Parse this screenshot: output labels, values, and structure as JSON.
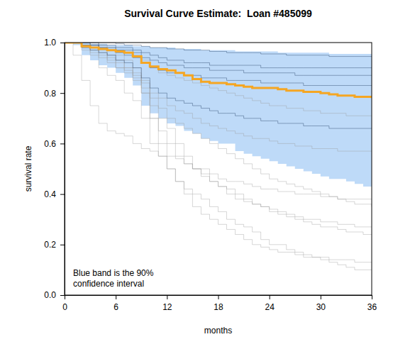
{
  "chart_data": {
    "type": "line",
    "title": "Survival Curve Estimate:  Loan #485099",
    "x_label": "months",
    "y_label": "survival rate",
    "annotation": [
      "Blue band is the 90%",
      "confidence interval"
    ],
    "line_style": "step",
    "x": [
      0,
      1,
      2,
      3,
      4,
      5,
      6,
      7,
      8,
      9,
      10,
      11,
      12,
      13,
      14,
      15,
      16,
      17,
      18,
      19,
      20,
      21,
      22,
      23,
      24,
      25,
      26,
      27,
      28,
      29,
      30,
      31,
      32,
      33,
      34,
      35,
      36
    ],
    "xlim": [
      0,
      36
    ],
    "xticks": [
      0,
      6,
      12,
      18,
      24,
      30,
      36
    ],
    "ylim": [
      0,
      1
    ],
    "yticks": [
      {
        "value": 0,
        "label": "0.0"
      },
      {
        "value": 0.2,
        "label": "0.2"
      },
      {
        "value": 0.4,
        "label": "0.4"
      },
      {
        "value": 0.6,
        "label": "0.6"
      },
      {
        "value": 0.8,
        "label": "0.8"
      },
      {
        "value": 1,
        "label": "1.0"
      }
    ],
    "grid": false,
    "series": [
      {
        "type": "area",
        "color": "#b3d4f7",
        "upper": [
          1,
          1,
          1,
          0.995,
          0.995,
          0.99,
          0.99,
          0.99,
          0.985,
          0.985,
          0.98,
          0.98,
          0.98,
          0.975,
          0.975,
          0.975,
          0.97,
          0.97,
          0.97,
          0.97,
          0.965,
          0.965,
          0.965,
          0.965,
          0.965,
          0.96,
          0.96,
          0.96,
          0.96,
          0.96,
          0.96,
          0.955,
          0.955,
          0.955,
          0.955,
          0.955,
          0.955
        ],
        "lower": [
          1,
          0.99,
          0.95,
          0.93,
          0.91,
          0.9,
          0.88,
          0.86,
          0.83,
          0.75,
          0.72,
          0.7,
          0.68,
          0.67,
          0.65,
          0.64,
          0.62,
          0.61,
          0.6,
          0.6,
          0.57,
          0.56,
          0.55,
          0.54,
          0.53,
          0.52,
          0.51,
          0.5,
          0.49,
          0.48,
          0.47,
          0.46,
          0.46,
          0.45,
          0.44,
          0.43,
          0.42
        ]
      },
      {
        "type": "line",
        "color": "#9a9a9a",
        "values": [
          1,
          1,
          0.97,
          0.95,
          0.9,
          0.87,
          0.85,
          0.8,
          0.77,
          0.7,
          0.6,
          0.55,
          0.5,
          0.45,
          0.42,
          0.4,
          0.38,
          0.35,
          0.33,
          0.3,
          0.28,
          0.27,
          0.25,
          0.22,
          0.2,
          0.2,
          0.18,
          0.17,
          0.15,
          0.15,
          0.14,
          0.13,
          0.12,
          0.11,
          0.1,
          0.1,
          0.1
        ]
      },
      {
        "type": "line",
        "color": "#9a9a9a",
        "values": [
          1,
          0.95,
          0.85,
          0.75,
          0.68,
          0.65,
          0.64,
          0.63,
          0.6,
          0.58,
          0.57,
          0.55,
          0.55,
          0.54,
          0.52,
          0.5,
          0.5,
          0.48,
          0.46,
          0.45,
          0.45,
          0.44,
          0.43,
          0.42,
          0.42,
          0.41,
          0.41,
          0.4,
          0.4,
          0.4,
          0.39,
          0.39,
          0.38,
          0.38,
          0.38,
          0.38,
          0.38
        ]
      },
      {
        "type": "line",
        "color": "#9a9a9a",
        "values": [
          1,
          1,
          0.99,
          0.97,
          0.95,
          0.93,
          0.9,
          0.88,
          0.85,
          0.8,
          0.7,
          0.65,
          0.6,
          0.55,
          0.52,
          0.5,
          0.48,
          0.45,
          0.43,
          0.4,
          0.38,
          0.37,
          0.36,
          0.35,
          0.34,
          0.33,
          0.32,
          0.31,
          0.3,
          0.3,
          0.29,
          0.29,
          0.28,
          0.28,
          0.27,
          0.27,
          0.27
        ]
      },
      {
        "type": "line",
        "color": "#9a9a9a",
        "values": [
          1,
          1,
          1,
          0.99,
          0.98,
          0.97,
          0.95,
          0.93,
          0.9,
          0.85,
          0.8,
          0.78,
          0.75,
          0.73,
          0.72,
          0.7,
          0.68,
          0.67,
          0.66,
          0.65,
          0.64,
          0.63,
          0.62,
          0.62,
          0.61,
          0.6,
          0.6,
          0.59,
          0.59,
          0.58,
          0.58,
          0.58,
          0.57,
          0.57,
          0.57,
          0.57,
          0.57
        ]
      },
      {
        "type": "line",
        "color": "#9a9a9a",
        "values": [
          1,
          1,
          0.98,
          0.96,
          0.94,
          0.92,
          0.9,
          0.89,
          0.87,
          0.82,
          0.75,
          0.7,
          0.66,
          0.6,
          0.55,
          0.5,
          0.47,
          0.45,
          0.43,
          0.42,
          0.4,
          0.38,
          0.36,
          0.35,
          0.33,
          0.32,
          0.31,
          0.3,
          0.29,
          0.28,
          0.27,
          0.27,
          0.26,
          0.25,
          0.25,
          0.24,
          0.24
        ]
      },
      {
        "type": "line",
        "color": "#9a9a9a",
        "values": [
          1,
          1,
          1,
          1,
          0.99,
          0.98,
          0.97,
          0.96,
          0.95,
          0.93,
          0.9,
          0.88,
          0.87,
          0.86,
          0.85,
          0.84,
          0.83,
          0.82,
          0.81,
          0.8,
          0.79,
          0.78,
          0.77,
          0.76,
          0.75,
          0.75,
          0.74,
          0.74,
          0.73,
          0.73,
          0.72,
          0.72,
          0.72,
          0.71,
          0.71,
          0.71,
          0.71
        ]
      },
      {
        "type": "line",
        "color": "#9a9a9a",
        "values": [
          1,
          1,
          0.99,
          0.98,
          0.96,
          0.94,
          0.92,
          0.9,
          0.88,
          0.84,
          0.78,
          0.74,
          0.7,
          0.68,
          0.66,
          0.64,
          0.62,
          0.6,
          0.58,
          0.56,
          0.54,
          0.52,
          0.5,
          0.48,
          0.46,
          0.45,
          0.44,
          0.43,
          0.42,
          0.41,
          0.4,
          0.39,
          0.38,
          0.37,
          0.36,
          0.36,
          0.35
        ]
      },
      {
        "type": "line",
        "color": "#9a9a9a",
        "values": [
          1,
          1,
          1,
          0.99,
          0.97,
          0.95,
          0.93,
          0.9,
          0.86,
          0.8,
          0.7,
          0.6,
          0.5,
          0.45,
          0.4,
          0.35,
          0.32,
          0.3,
          0.28,
          0.26,
          0.24,
          0.22,
          0.2,
          0.19,
          0.18,
          0.17,
          0.17,
          0.16,
          0.16,
          0.15,
          0.15,
          0.14,
          0.14,
          0.14,
          0.13,
          0.13,
          0.13
        ]
      },
      {
        "type": "line",
        "color": "#1f3a5f",
        "values": [
          1,
          1,
          1,
          1,
          1,
          1,
          0.995,
          0.99,
          0.99,
          0.985,
          0.98,
          0.98,
          0.975,
          0.975,
          0.97,
          0.97,
          0.97,
          0.965,
          0.965,
          0.96,
          0.96,
          0.96,
          0.96,
          0.955,
          0.955,
          0.955,
          0.95,
          0.95,
          0.95,
          0.95,
          0.95,
          0.945,
          0.945,
          0.945,
          0.945,
          0.945,
          0.945
        ]
      },
      {
        "type": "line",
        "color": "#1f3a5f",
        "values": [
          1,
          1,
          1,
          0.99,
          0.98,
          0.97,
          0.96,
          0.95,
          0.94,
          0.92,
          0.9,
          0.89,
          0.88,
          0.88,
          0.87,
          0.87,
          0.86,
          0.86,
          0.86,
          0.85,
          0.85,
          0.85,
          0.85,
          0.84,
          0.84,
          0.84,
          0.84,
          0.84,
          0.83,
          0.83,
          0.83,
          0.83,
          0.83,
          0.83,
          0.83,
          0.83,
          0.83
        ]
      },
      {
        "type": "line",
        "color": "#1f3a5f",
        "values": [
          1,
          1,
          0.99,
          0.99,
          0.98,
          0.98,
          0.97,
          0.97,
          0.96,
          0.94,
          0.93,
          0.92,
          0.91,
          0.91,
          0.9,
          0.9,
          0.9,
          0.89,
          0.89,
          0.89,
          0.89,
          0.88,
          0.88,
          0.88,
          0.88,
          0.88,
          0.88,
          0.87,
          0.87,
          0.87,
          0.87,
          0.87,
          0.87,
          0.87,
          0.87,
          0.87,
          0.87
        ]
      },
      {
        "type": "line",
        "color": "#1f3a5f",
        "values": [
          1,
          1,
          1,
          1,
          0.99,
          0.99,
          0.98,
          0.98,
          0.97,
          0.96,
          0.95,
          0.94,
          0.93,
          0.93,
          0.92,
          0.92,
          0.92,
          0.91,
          0.91,
          0.91,
          0.91,
          0.91,
          0.91,
          0.9,
          0.9,
          0.9,
          0.9,
          0.9,
          0.9,
          0.9,
          0.9,
          0.9,
          0.9,
          0.9,
          0.9,
          0.9,
          0.9
        ]
      },
      {
        "type": "line",
        "color": "#1f3a5f",
        "values": [
          1,
          1,
          0.98,
          0.97,
          0.96,
          0.95,
          0.93,
          0.92,
          0.9,
          0.86,
          0.82,
          0.8,
          0.78,
          0.77,
          0.76,
          0.75,
          0.74,
          0.73,
          0.72,
          0.72,
          0.71,
          0.7,
          0.7,
          0.69,
          0.69,
          0.68,
          0.68,
          0.68,
          0.67,
          0.67,
          0.67,
          0.66,
          0.66,
          0.66,
          0.66,
          0.66,
          0.66
        ]
      },
      {
        "type": "line",
        "color": "#f5a623",
        "values": [
          1,
          1,
          0.985,
          0.98,
          0.975,
          0.97,
          0.965,
          0.96,
          0.945,
          0.92,
          0.905,
          0.895,
          0.89,
          0.88,
          0.87,
          0.855,
          0.845,
          0.84,
          0.84,
          0.835,
          0.83,
          0.825,
          0.82,
          0.82,
          0.82,
          0.815,
          0.81,
          0.81,
          0.805,
          0.805,
          0.8,
          0.795,
          0.79,
          0.79,
          0.785,
          0.785,
          0.78
        ]
      }
    ]
  }
}
